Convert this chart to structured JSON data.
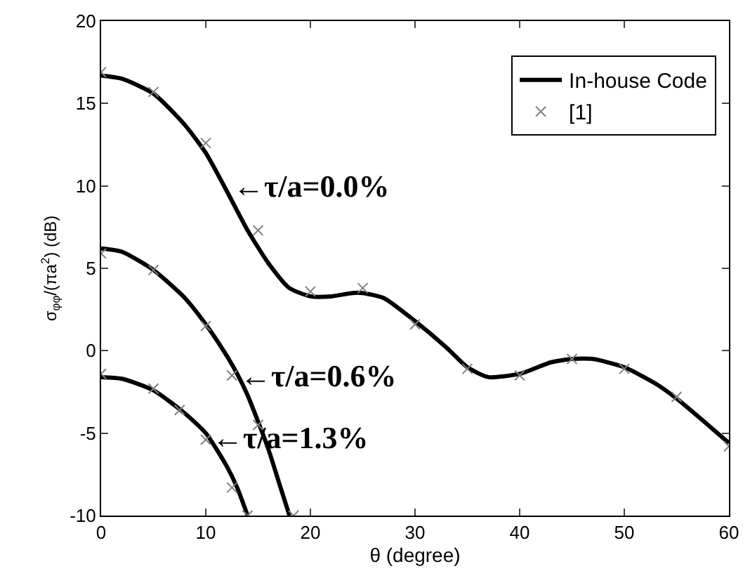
{
  "chart_data": {
    "type": "line",
    "xlabel": "θ (degree)",
    "ylabel": "σ$_{φφ}$/(πa$^{2}$) (dB)",
    "xlim": [
      0,
      60
    ],
    "ylim": [
      -10,
      20
    ],
    "xticks": [
      0,
      10,
      20,
      30,
      40,
      50,
      60
    ],
    "yticks": [
      -10,
      -5,
      0,
      5,
      10,
      15,
      20
    ],
    "legend": "top right",
    "series": [
      {
        "name": "In-house Code",
        "color": "#000000",
        "marker": "none",
        "x": [
          0,
          2,
          5,
          8,
          10,
          12,
          14,
          16,
          18,
          20,
          22,
          24,
          25,
          27,
          30,
          33,
          35,
          37,
          40,
          43,
          45,
          47,
          50,
          53,
          55,
          58,
          60
        ],
        "values": [
          16.7,
          16.5,
          15.6,
          13.7,
          12.0,
          9.7,
          7.3,
          5.3,
          3.8,
          3.3,
          3.3,
          3.5,
          3.5,
          3.2,
          1.8,
          0.2,
          -1.0,
          -1.6,
          -1.4,
          -0.7,
          -0.5,
          -0.5,
          -1.0,
          -2.0,
          -2.9,
          -4.5,
          -5.6
        ]
      },
      {
        "color": "#000000",
        "marker": "none",
        "x": [
          0,
          2,
          5,
          8,
          10,
          12,
          13,
          14,
          15,
          16,
          17,
          18
        ],
        "values": [
          6.2,
          6.0,
          4.9,
          3.2,
          1.6,
          -0.3,
          -1.4,
          -2.7,
          -4.3,
          -6.0,
          -8.0,
          -10
        ]
      },
      {
        "color": "#000000",
        "marker": "none",
        "x": [
          0,
          2,
          5,
          8,
          10,
          12,
          13,
          14
        ],
        "values": [
          -1.6,
          -1.7,
          -2.4,
          -3.8,
          -5.0,
          -7.0,
          -8.3,
          -10
        ]
      },
      {
        "name": "[1]",
        "type": "scatter",
        "color": "#808080",
        "marker": "cross",
        "x": [
          0,
          5,
          10,
          15,
          20,
          25,
          30,
          35,
          40,
          45,
          50,
          55,
          60
        ],
        "values": [
          16.9,
          15.7,
          12.6,
          7.3,
          3.6,
          3.8,
          1.6,
          -1.1,
          -1.5,
          -0.5,
          -1.1,
          -2.8,
          -5.8
        ]
      },
      {
        "type": "scatter",
        "color": "#808080",
        "marker": "cross",
        "x": [
          0,
          5,
          10,
          12.5,
          15,
          18.4
        ],
        "values": [
          5.9,
          4.9,
          1.5,
          -1.5,
          -4.5,
          -10
        ]
      },
      {
        "type": "scatter",
        "color": "#808080",
        "marker": "cross",
        "x": [
          0,
          5,
          7.5,
          10,
          12.5,
          14
        ],
        "values": [
          -1.4,
          -2.3,
          -3.6,
          -5.4,
          -8.3,
          -10
        ]
      }
    ],
    "annotations": [
      {
        "text": "←τ/a=0.0%",
        "x": 12.3,
        "y": 10
      },
      {
        "text": "←τ/a=0.6%",
        "x": 13,
        "y": -1.5
      },
      {
        "text": "←τ/a=1.3%",
        "x": 10.3,
        "y": -5.3
      }
    ]
  }
}
